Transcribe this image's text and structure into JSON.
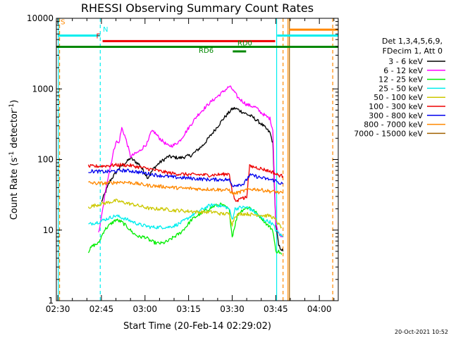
{
  "chart_data": {
    "type": "line",
    "title": "RHESSI Observing Summary Count Rates",
    "xlabel": "Start Time (20-Feb-14 02:29:02)",
    "ylabel": "Count Rate (s⁻¹ detector⁻¹)",
    "ylabel_parts": {
      "main": "Count Rate (s",
      "sup1": "-1",
      "mid": " detector",
      "sup2": "-1",
      "end": ")"
    },
    "y_scale": "log",
    "ylim": [
      1,
      10000
    ],
    "xlim_minutes": [
      -0.5,
      96.5
    ],
    "x_ticks": [
      {
        "label": "02:30",
        "min": 0
      },
      {
        "label": "02:45",
        "min": 15
      },
      {
        "label": "03:00",
        "min": 30
      },
      {
        "label": "03:15",
        "min": 45
      },
      {
        "label": "03:30",
        "min": 60
      },
      {
        "label": "03:45",
        "min": 75
      },
      {
        "label": "04:00",
        "min": 90
      }
    ],
    "y_ticks": [
      {
        "label": "1",
        "v": 1
      },
      {
        "label": "10",
        "v": 10
      },
      {
        "label": "100",
        "v": 100
      },
      {
        "label": "1000",
        "v": 1000
      },
      {
        "label": "10000",
        "v": 10000
      }
    ],
    "legend_header": [
      "Det 1,3,4,5,6,9,",
      "FDecim 1, Att 0"
    ],
    "legend_placement": "right",
    "series": [
      {
        "name": "3 - 6 keV",
        "color": "#000000",
        "points": [
          [
            15,
            25
          ],
          [
            18,
            50
          ],
          [
            21,
            75
          ],
          [
            24,
            95
          ],
          [
            25,
            105
          ],
          [
            28,
            85
          ],
          [
            31,
            55
          ],
          [
            33,
            75
          ],
          [
            35,
            90
          ],
          [
            38,
            110
          ],
          [
            42,
            105
          ],
          [
            46,
            115
          ],
          [
            50,
            160
          ],
          [
            53,
            230
          ],
          [
            57,
            380
          ],
          [
            60,
            520
          ],
          [
            61,
            530
          ],
          [
            62,
            510
          ],
          [
            64,
            460
          ],
          [
            67,
            400
          ],
          [
            70,
            320
          ],
          [
            73,
            240
          ],
          [
            74,
            170
          ],
          [
            75,
            12
          ],
          [
            76,
            6
          ],
          [
            77.5,
            5
          ]
        ]
      },
      {
        "name": "6 - 12 keV",
        "color": "#ff00ff",
        "points": [
          [
            14,
            9
          ],
          [
            15,
            15
          ],
          [
            17,
            50
          ],
          [
            19,
            120
          ],
          [
            20,
            180
          ],
          [
            21,
            170
          ],
          [
            22,
            280
          ],
          [
            23,
            220
          ],
          [
            24,
            160
          ],
          [
            25,
            110
          ],
          [
            28,
            130
          ],
          [
            31,
            175
          ],
          [
            32,
            240
          ],
          [
            33,
            250
          ],
          [
            35,
            200
          ],
          [
            38,
            155
          ],
          [
            40,
            160
          ],
          [
            42,
            185
          ],
          [
            45,
            280
          ],
          [
            48,
            420
          ],
          [
            52,
            620
          ],
          [
            56,
            850
          ],
          [
            59,
            1080
          ],
          [
            60,
            1000
          ],
          [
            62,
            750
          ],
          [
            65,
            600
          ],
          [
            68,
            550
          ],
          [
            70,
            460
          ],
          [
            72,
            400
          ],
          [
            73,
            380
          ],
          [
            74,
            260
          ],
          [
            75,
            12
          ],
          [
            76,
            9
          ],
          [
            77.5,
            8
          ]
        ]
      },
      {
        "name": "12 - 25 keV",
        "color": "#00ee00",
        "points": [
          [
            10.5,
            5
          ],
          [
            12,
            6
          ],
          [
            14,
            6.5
          ],
          [
            16,
            10
          ],
          [
            18,
            12
          ],
          [
            20,
            14
          ],
          [
            22,
            13
          ],
          [
            24,
            11
          ],
          [
            26,
            9
          ],
          [
            28,
            8
          ],
          [
            30,
            8
          ],
          [
            32,
            7
          ],
          [
            34,
            6.5
          ],
          [
            36,
            6.5
          ],
          [
            38,
            7
          ],
          [
            40,
            8
          ],
          [
            42,
            9
          ],
          [
            44,
            11
          ],
          [
            46,
            14
          ],
          [
            48,
            16
          ],
          [
            50,
            18
          ],
          [
            52,
            20
          ],
          [
            54,
            22
          ],
          [
            56,
            23
          ],
          [
            58,
            21
          ],
          [
            59,
            19
          ],
          [
            60,
            8
          ],
          [
            61,
            12
          ],
          [
            62,
            17
          ],
          [
            64,
            20
          ],
          [
            66,
            21
          ],
          [
            68,
            18
          ],
          [
            70,
            15
          ],
          [
            72,
            12
          ],
          [
            73,
            11
          ],
          [
            74,
            10
          ],
          [
            75,
            5
          ],
          [
            76,
            5
          ],
          [
            77,
            4.5
          ]
        ]
      },
      {
        "name": "25 - 50 keV",
        "color": "#00eeee",
        "points": [
          [
            10.5,
            12
          ],
          [
            12,
            12.5
          ],
          [
            14,
            13
          ],
          [
            16,
            14
          ],
          [
            18,
            15
          ],
          [
            20,
            16
          ],
          [
            22,
            15
          ],
          [
            24,
            14
          ],
          [
            26,
            13
          ],
          [
            28,
            12
          ],
          [
            30,
            11.5
          ],
          [
            32,
            11
          ],
          [
            34,
            11
          ],
          [
            36,
            11
          ],
          [
            38,
            11
          ],
          [
            40,
            11.5
          ],
          [
            42,
            12.5
          ],
          [
            44,
            14
          ],
          [
            46,
            16
          ],
          [
            48,
            18
          ],
          [
            50,
            20
          ],
          [
            52,
            22
          ],
          [
            54,
            23
          ],
          [
            56,
            22
          ],
          [
            58,
            21
          ],
          [
            59,
            20
          ],
          [
            60,
            14
          ],
          [
            61,
            20
          ],
          [
            63,
            21
          ],
          [
            65,
            21
          ],
          [
            67,
            19
          ],
          [
            69,
            16
          ],
          [
            71,
            14
          ],
          [
            73,
            13
          ],
          [
            74,
            12
          ],
          [
            75,
            10
          ],
          [
            76,
            9
          ],
          [
            77.5,
            8
          ]
        ]
      },
      {
        "name": "50 - 100 keV",
        "color": "#ccc800",
        "points": [
          [
            10.5,
            21
          ],
          [
            12,
            22
          ],
          [
            14,
            23
          ],
          [
            16,
            24
          ],
          [
            18,
            25
          ],
          [
            20,
            26
          ],
          [
            22,
            25
          ],
          [
            24,
            24
          ],
          [
            26,
            23
          ],
          [
            28,
            22
          ],
          [
            30,
            21
          ],
          [
            32,
            20
          ],
          [
            34,
            20
          ],
          [
            36,
            20
          ],
          [
            38,
            19.5
          ],
          [
            40,
            19
          ],
          [
            42,
            19
          ],
          [
            44,
            18.5
          ],
          [
            46,
            18.5
          ],
          [
            48,
            18
          ],
          [
            50,
            18
          ],
          [
            52,
            18
          ],
          [
            54,
            18
          ],
          [
            56,
            17
          ],
          [
            58,
            17
          ],
          [
            59,
            17
          ],
          [
            60,
            12
          ],
          [
            61,
            16
          ],
          [
            63,
            17
          ],
          [
            65,
            17
          ],
          [
            67,
            16.5
          ],
          [
            69,
            16.5
          ],
          [
            71,
            16
          ],
          [
            73,
            16
          ],
          [
            74,
            15
          ],
          [
            75,
            14
          ],
          [
            76,
            12
          ],
          [
            77,
            11
          ]
        ]
      },
      {
        "name": "100 - 300 keV",
        "color": "#ee0000",
        "points": [
          [
            10.5,
            80
          ],
          [
            13,
            80
          ],
          [
            16,
            81
          ],
          [
            19,
            83
          ],
          [
            22,
            84
          ],
          [
            25,
            82
          ],
          [
            28,
            78
          ],
          [
            31,
            74
          ],
          [
            34,
            70
          ],
          [
            37,
            66
          ],
          [
            40,
            63
          ],
          [
            43,
            62
          ],
          [
            46,
            61
          ],
          [
            49,
            61
          ],
          [
            52,
            60
          ],
          [
            55,
            61
          ],
          [
            58,
            62
          ],
          [
            59,
            64
          ],
          [
            60,
            35
          ],
          [
            61,
            26
          ],
          [
            62,
            26
          ],
          [
            63,
            30
          ],
          [
            64,
            28
          ],
          [
            65,
            30
          ],
          [
            66,
            80
          ],
          [
            68,
            78
          ],
          [
            70,
            74
          ],
          [
            72,
            70
          ],
          [
            74,
            66
          ],
          [
            75,
            62
          ],
          [
            76,
            60
          ],
          [
            77.5,
            58
          ]
        ]
      },
      {
        "name": "300 - 800 keV",
        "color": "#0000ee",
        "points": [
          [
            10.5,
            68
          ],
          [
            13,
            68
          ],
          [
            16,
            67
          ],
          [
            19,
            68
          ],
          [
            22,
            70
          ],
          [
            25,
            69
          ],
          [
            28,
            66
          ],
          [
            31,
            63
          ],
          [
            34,
            60
          ],
          [
            37,
            58
          ],
          [
            40,
            56
          ],
          [
            43,
            55
          ],
          [
            46,
            54
          ],
          [
            49,
            53
          ],
          [
            52,
            52
          ],
          [
            55,
            52
          ],
          [
            58,
            52
          ],
          [
            59,
            51
          ],
          [
            60,
            43
          ],
          [
            62,
            44
          ],
          [
            64,
            45
          ],
          [
            66,
            60
          ],
          [
            68,
            58
          ],
          [
            70,
            55
          ],
          [
            72,
            53
          ],
          [
            74,
            51
          ],
          [
            75,
            50
          ],
          [
            76,
            47
          ],
          [
            77.5,
            45
          ]
        ]
      },
      {
        "name": "800 - 7000 keV",
        "color": "#ff8800",
        "points": [
          [
            10.5,
            47
          ],
          [
            13,
            46
          ],
          [
            16,
            46
          ],
          [
            19,
            47
          ],
          [
            22,
            48
          ],
          [
            25,
            47
          ],
          [
            28,
            45
          ],
          [
            31,
            43
          ],
          [
            34,
            42
          ],
          [
            37,
            41
          ],
          [
            40,
            40
          ],
          [
            43,
            39
          ],
          [
            46,
            39
          ],
          [
            49,
            38
          ],
          [
            52,
            38
          ],
          [
            55,
            37.5
          ],
          [
            58,
            37
          ],
          [
            59,
            37
          ],
          [
            60,
            33
          ],
          [
            61,
            33
          ],
          [
            62,
            34
          ],
          [
            64,
            36
          ],
          [
            66,
            38
          ],
          [
            68,
            38
          ],
          [
            70,
            37
          ],
          [
            72,
            36
          ],
          [
            74,
            35
          ],
          [
            75,
            35
          ],
          [
            76,
            34
          ],
          [
            77.5,
            33
          ]
        ]
      },
      {
        "name": "7000 - 15000 keV",
        "color": "#a06000",
        "points": []
      }
    ],
    "vertical_lines": [
      {
        "min": 0.2,
        "color": "#00eeee",
        "dashed": false
      },
      {
        "min": 0.6,
        "color": "#ff8800",
        "dashed": true
      },
      {
        "min": 14.6,
        "color": "#00eeee",
        "dashed": true
      },
      {
        "min": 75.3,
        "color": "#00eeee",
        "dashed": false
      },
      {
        "min": 77.5,
        "color": "#ff8800",
        "dashed": true
      },
      {
        "min": 79.2,
        "color": "#ff8800",
        "dashed": false
      },
      {
        "min": 79.7,
        "color": "#a06000",
        "dashed": false
      },
      {
        "min": 94.6,
        "color": "#ff8800",
        "dashed": true
      }
    ],
    "flag_bars": [
      {
        "label": "S",
        "label_color": "#ff8800",
        "label_at": 1.0,
        "label_y": 8200,
        "segments": [
          [
            79.6,
            96.5
          ]
        ],
        "y": 6900,
        "color": "#ff8800"
      },
      {
        "label": "N",
        "label_color": "#00eeee",
        "label_at": 15.5,
        "label_y": 6500,
        "segments": [
          [
            0,
            14.6
          ],
          [
            75.5,
            96.5
          ]
        ],
        "y": 5700,
        "color": "#00eeee"
      },
      {
        "label": "F",
        "label_color": "#ee0000",
        "label_at": 13.2,
        "label_y": 5200,
        "segments": [
          [
            15.4,
            74.8
          ]
        ],
        "y": 4750,
        "color": "#ee0000"
      },
      {
        "label": "RD0",
        "label_color": "#008800",
        "label_at": 61.8,
        "label_y": 4150,
        "segments": [
          [
            -0.5,
            96.5
          ]
        ],
        "y": 3950,
        "color": "#008800"
      },
      {
        "label": "RD6",
        "label_color": "#008800",
        "label_at": 48.5,
        "label_y": 3250,
        "segments": [
          [
            60.2,
            64.8
          ]
        ],
        "y": 3400,
        "color": "#008800"
      }
    ]
  },
  "footer_stamp": "20-Oct-2021 10:52"
}
